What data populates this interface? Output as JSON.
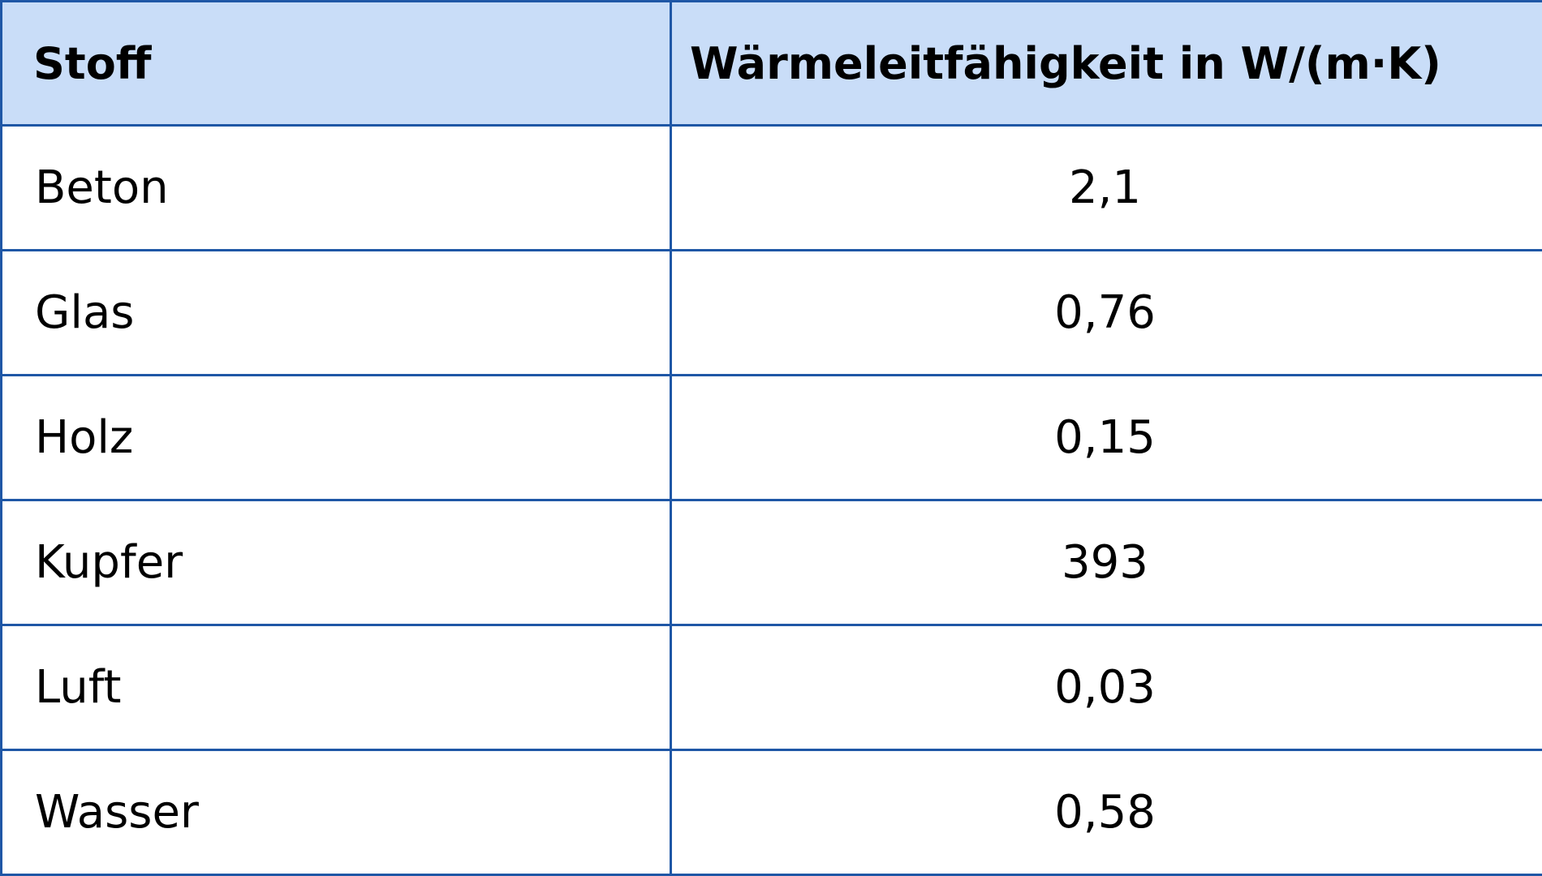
{
  "table": {
    "headers": {
      "stoff": "Stoff",
      "waermeleitfaehigkeit": "Wärmeleitfähigkeit in W/(m·K)"
    },
    "rows": [
      {
        "stoff": "Beton",
        "wert": "2,1"
      },
      {
        "stoff": "Glas",
        "wert": "0,76"
      },
      {
        "stoff": "Holz",
        "wert": "0,15"
      },
      {
        "stoff": "Kupfer",
        "wert": "393"
      },
      {
        "stoff": "Luft",
        "wert": "0,03"
      },
      {
        "stoff": "Wasser",
        "wert": "0,58"
      }
    ]
  },
  "colors": {
    "header_background": "#c9ddf8",
    "border": "#1f57a6",
    "text": "#000000"
  }
}
